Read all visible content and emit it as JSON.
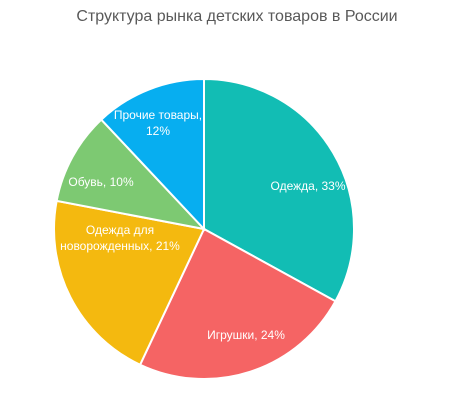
{
  "chart_data": {
    "type": "pie",
    "title": "Структура рынка детских товаров в России",
    "slices": [
      {
        "name": "Одежда",
        "label": "Одежда, 33%",
        "value": 33,
        "color": "#12bdb4"
      },
      {
        "name": "Игрушки",
        "label": "Игрушки, 24%",
        "value": 24,
        "color": "#f56464"
      },
      {
        "name": "Одежда для новорожденных",
        "label_lines": [
          "Одежда для",
          "новорожденных, 21%"
        ],
        "value": 21,
        "color": "#f4b90f"
      },
      {
        "name": "Обувь",
        "label": "Обувь, 10%",
        "value": 10,
        "color": "#7dc972"
      },
      {
        "name": "Прочие товары",
        "label_lines": [
          "Прочие товары,",
          "12%"
        ],
        "value": 12,
        "color": "#07aef0"
      }
    ],
    "legend": "none",
    "start": "top, clockwise"
  }
}
